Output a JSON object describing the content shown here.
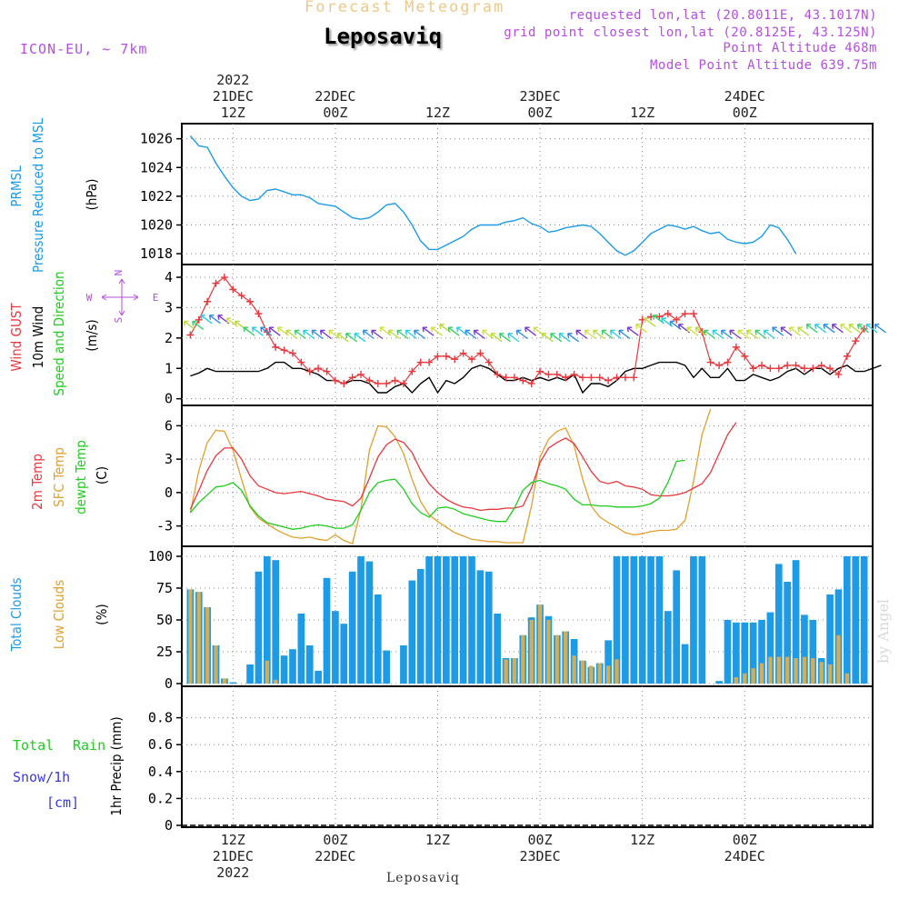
{
  "header": {
    "top_title": "Forecast Meteogram",
    "station": "Leposaviq",
    "model": "ICON-EU, ~ 7km",
    "requested": "requested lon,lat (20.8011E, 43.1017N)",
    "grid_point": "grid point closest lon,lat (20.8125E, 43.125N)",
    "point_altitude": "Point Altitude 468m",
    "model_altitude": "Model Point Altitude 639.75m"
  },
  "footer": {
    "station": "Leposaviq",
    "credit": "by Angel"
  },
  "colors": {
    "pressure": "#1e9be6",
    "gust": "#e8383d",
    "wind": "#000000",
    "temp2m": "#e8383d",
    "sfc_temp": "#e0a030",
    "dewpt": "#1fcc1f",
    "total_clouds": "#1e9be6",
    "low_clouds": "#d4ad55",
    "rain": "#1fcc1f",
    "snow": "#3b3bd6",
    "dir_labels": "#b44ee0"
  },
  "time_axis": {
    "top": [
      {
        "t": 12,
        "lines": [
          "2022",
          "21DEC",
          "12Z"
        ]
      },
      {
        "t": 24,
        "lines": [
          "22DEC",
          "00Z"
        ]
      },
      {
        "t": 36,
        "lines": [
          "12Z"
        ]
      },
      {
        "t": 48,
        "lines": [
          "23DEC",
          "00Z"
        ]
      },
      {
        "t": 60,
        "lines": [
          "12Z"
        ]
      },
      {
        "t": 72,
        "lines": [
          "24DEC",
          "00Z"
        ]
      }
    ],
    "bottom": [
      {
        "t": 12,
        "lines": [
          "12Z",
          "21DEC",
          "2022"
        ]
      },
      {
        "t": 24,
        "lines": [
          "00Z",
          "22DEC"
        ]
      },
      {
        "t": 36,
        "lines": [
          "12Z"
        ]
      },
      {
        "t": 48,
        "lines": [
          "00Z",
          "23DEC"
        ]
      },
      {
        "t": 60,
        "lines": [
          "12Z"
        ]
      },
      {
        "t": 72,
        "lines": [
          "00Z",
          "24DEC"
        ]
      }
    ]
  },
  "panels": [
    {
      "id": "pressure",
      "labels": [
        {
          "text": "PRMSL",
          "color": "#1e9be6"
        },
        {
          "text": "Pressure Reduced to MSL",
          "color": "#1e9be6"
        },
        {
          "text": "(hPa)",
          "color": "#000000"
        }
      ]
    },
    {
      "id": "wind",
      "labels": [
        {
          "text": "Wind GUST",
          "color": "#e8383d"
        },
        {
          "text": "10m Wind",
          "color": "#000000"
        },
        {
          "text": "Speed and Direction",
          "color": "#1fcc1f"
        },
        {
          "text": "(m/s)",
          "color": "#000000"
        }
      ],
      "compass": {
        "n": "N",
        "s": "S",
        "w": "W",
        "e": "E"
      }
    },
    {
      "id": "temp",
      "labels": [
        {
          "text": "2m Temp",
          "color": "#e8383d"
        },
        {
          "text": "SFC Temp",
          "color": "#e0a030"
        },
        {
          "text": "dewpt Temp",
          "color": "#1fcc1f"
        },
        {
          "text": "(C)",
          "color": "#000000"
        }
      ]
    },
    {
      "id": "clouds",
      "labels": [
        {
          "text": "Total Clouds",
          "color": "#1e9be6"
        },
        {
          "text": "Low Clouds",
          "color": "#e0a030"
        },
        {
          "text": "(%)",
          "color": "#000000"
        }
      ]
    },
    {
      "id": "precip",
      "labels": [
        {
          "text": "Total",
          "color": "#1fcc1f"
        },
        {
          "text": "Rain",
          "color": "#1fcc1f"
        },
        {
          "text": "Snow/1h",
          "color": "#3b3bd6"
        },
        {
          "text": "[cm]",
          "color": "#3b3bd6"
        },
        {
          "text": "1hr Precip (mm)",
          "color": "#000000"
        }
      ]
    }
  ],
  "chart_data": [
    {
      "type": "line",
      "title": "PRMSL Pressure Reduced to MSL",
      "ylabel": "(hPa)",
      "ylim": [
        1017.5,
        1026.8
      ],
      "yticks": [
        1018,
        1020,
        1022,
        1024,
        1026
      ],
      "x_start": 7,
      "x_step": 1,
      "series": [
        {
          "name": "PRMSL",
          "values": [
            1026.2,
            1025.5,
            1025.4,
            1024.3,
            1023.4,
            1022.6,
            1022.0,
            1021.7,
            1021.8,
            1022.4,
            1022.5,
            1022.3,
            1022.1,
            1022.1,
            1021.9,
            1021.5,
            1021.4,
            1021.3,
            1020.9,
            1020.5,
            1020.4,
            1020.5,
            1020.9,
            1021.4,
            1021.5,
            1020.9,
            1020.0,
            1018.9,
            1018.3,
            1018.3,
            1018.6,
            1018.9,
            1019.2,
            1019.7,
            1020.0,
            1020.0,
            1020.0,
            1020.2,
            1020.3,
            1020.5,
            1020.1,
            1019.9,
            1019.5,
            1019.6,
            1019.8,
            1019.9,
            1020.0,
            1019.9,
            1019.4,
            1018.8,
            1018.2,
            1017.9,
            1018.2,
            1018.8,
            1019.4,
            1019.7,
            1020.0,
            1019.9,
            1019.7,
            1019.9,
            1019.6,
            1019.4,
            1019.5,
            1019.0,
            1018.8,
            1018.7,
            1018.8,
            1019.2,
            1020.0,
            1019.8,
            1019.0,
            1018.0
          ]
        }
      ]
    },
    {
      "type": "line",
      "title": "Wind GUST / 10m Wind Speed and Direction",
      "ylabel": "(m/s)",
      "ylim": [
        -0.1,
        4.3
      ],
      "yticks": [
        0,
        1,
        2,
        3,
        4
      ],
      "x_start": 7,
      "x_step": 1,
      "series": [
        {
          "name": "Wind GUST",
          "values": [
            2.1,
            2.6,
            3.2,
            3.8,
            4.0,
            3.6,
            3.4,
            3.2,
            2.8,
            2.2,
            1.7,
            1.6,
            1.5,
            1.2,
            0.9,
            1.0,
            0.9,
            0.6,
            0.5,
            0.7,
            0.8,
            0.6,
            0.5,
            0.5,
            0.6,
            0.5,
            0.9,
            1.2,
            1.2,
            1.4,
            1.4,
            1.3,
            1.5,
            1.3,
            1.5,
            1.2,
            0.8,
            0.7,
            0.7,
            0.6,
            0.5,
            0.9,
            0.8,
            0.8,
            0.7,
            0.8,
            0.7,
            0.7,
            0.7,
            0.6,
            0.7,
            0.7,
            0.7,
            2.6,
            2.7,
            2.7,
            2.8,
            2.6,
            2.8,
            2.8,
            2.2,
            1.2,
            1.1,
            1.2,
            1.7,
            1.4,
            1.0,
            1.1,
            1.0,
            1.0,
            1.1,
            1.1,
            1.0,
            1.0,
            1.1,
            1.0,
            0.8,
            1.4,
            1.9,
            2.3
          ]
        },
        {
          "name": "10m Wind",
          "values": [
            0.75,
            0.85,
            1.0,
            0.9,
            0.9,
            0.9,
            0.9,
            0.9,
            0.9,
            1.0,
            1.2,
            1.2,
            1.0,
            1.0,
            0.9,
            0.8,
            0.6,
            0.6,
            0.5,
            0.6,
            0.6,
            0.5,
            0.2,
            0.2,
            0.4,
            0.5,
            0.2,
            0.5,
            0.7,
            0.2,
            0.6,
            0.5,
            0.7,
            1.0,
            1.1,
            1.0,
            0.8,
            0.6,
            0.6,
            0.7,
            0.6,
            0.7,
            0.6,
            0.7,
            0.6,
            0.8,
            0.2,
            0.5,
            0.5,
            0.4,
            0.6,
            0.9,
            1.0,
            1.0,
            1.1,
            1.2,
            1.2,
            1.2,
            1.1,
            0.7,
            1.0,
            0.7,
            0.7,
            1.0,
            0.6,
            0.6,
            0.8,
            0.7,
            0.6,
            0.7,
            0.9,
            1.0,
            0.8,
            1.0,
            1.0,
            0.8,
            1.0,
            1.1,
            0.9,
            0.9,
            1.0,
            1.1
          ]
        },
        {
          "name": "Speed and Direction",
          "values": [
            2.4,
            2.4,
            2.6,
            2.6,
            2.6,
            2.5,
            2.4,
            2.2,
            2.2,
            2.2,
            2.2,
            2.2,
            2.1,
            2.1,
            2.1,
            2.1,
            2.1,
            2.1,
            2.0,
            2.0,
            2.0,
            2.1,
            2.1,
            2.2,
            2.1,
            2.1,
            2.1,
            2.1,
            2.2,
            2.2,
            2.3,
            2.2,
            2.2,
            2.1,
            2.1,
            2.1,
            2.0,
            2.0,
            2.0,
            2.1,
            2.2,
            2.2,
            2.0,
            2.0,
            2.0,
            2.0,
            2.1,
            2.1,
            2.1,
            2.1,
            2.1,
            2.1,
            2.2,
            2.3,
            2.5,
            2.6,
            2.5,
            2.4,
            2.3,
            2.2,
            2.2,
            2.1,
            2.1,
            2.1,
            2.1,
            2.1,
            2.1,
            2.1,
            2.1,
            2.2,
            2.2,
            2.2,
            2.2,
            2.3,
            2.3,
            2.3,
            2.3,
            2.3,
            2.3,
            2.3,
            2.3,
            2.3
          ]
        }
      ]
    },
    {
      "type": "line",
      "title": "2m Temp / SFC Temp / dewpt Temp",
      "ylabel": "(C)",
      "ylim": [
        -4.5,
        7.5
      ],
      "yticks": [
        -3,
        0,
        3,
        6
      ],
      "x_start": 7,
      "x_step": 1,
      "series": [
        {
          "name": "2m Temp",
          "values": [
            -1.5,
            0.2,
            2.0,
            3.3,
            4.0,
            4.0,
            3.0,
            1.5,
            0.6,
            0.3,
            0.0,
            -0.1,
            0.0,
            0.1,
            -0.1,
            -0.3,
            -0.6,
            -0.7,
            -0.8,
            -1.2,
            -0.5,
            1.3,
            3.2,
            4.3,
            4.8,
            4.5,
            3.6,
            2.0,
            0.8,
            0.0,
            -0.6,
            -1.0,
            -1.3,
            -1.4,
            -1.6,
            -1.5,
            -1.5,
            -1.4,
            -1.4,
            -1.2,
            0.4,
            2.7,
            4.0,
            4.5,
            4.9,
            4.4,
            3.2,
            1.9,
            1.0,
            0.8,
            1.0,
            0.6,
            0.5,
            0.3,
            -0.2,
            -0.3,
            -0.3,
            -0.2,
            0.0,
            0.4,
            0.8,
            1.8,
            3.5,
            5.2,
            6.3
          ]
        },
        {
          "name": "SFC Temp",
          "values": [
            -1.8,
            2.0,
            4.5,
            5.6,
            5.5,
            3.8,
            1.2,
            -1.3,
            -2.3,
            -2.8,
            -3.3,
            -3.7,
            -4.0,
            -4.1,
            -4.0,
            -4.2,
            -4.3,
            -3.8,
            -4.3,
            -4.6,
            -1.5,
            3.8,
            6.0,
            5.9,
            5.0,
            3.5,
            1.2,
            -0.8,
            -2.0,
            -2.6,
            -3.1,
            -3.6,
            -3.9,
            -4.2,
            -4.3,
            -4.4,
            -4.4,
            -4.5,
            -4.5,
            -4.5,
            -1.2,
            3.2,
            4.8,
            5.5,
            5.8,
            4.2,
            1.2,
            -1.2,
            -2.2,
            -2.7,
            -3.1,
            -3.6,
            -3.8,
            -3.7,
            -3.5,
            -3.4,
            -3.4,
            -3.3,
            -2.5,
            1.0,
            5.2,
            7.5
          ]
        },
        {
          "name": "dewpt Temp",
          "values": [
            -1.8,
            -0.9,
            -0.2,
            0.5,
            0.6,
            0.9,
            0.2,
            -1.2,
            -2.1,
            -2.7,
            -2.9,
            -3.1,
            -3.3,
            -3.2,
            -3.0,
            -2.9,
            -3.0,
            -3.2,
            -3.2,
            -2.9,
            -1.6,
            0.0,
            0.9,
            1.1,
            1.2,
            0.3,
            -1.0,
            -1.8,
            -2.2,
            -1.4,
            -1.3,
            -1.5,
            -1.9,
            -2.1,
            -2.3,
            -2.5,
            -2.6,
            -2.6,
            -1.4,
            0.2,
            0.9,
            1.1,
            0.8,
            0.6,
            0.3,
            -0.6,
            -1.1,
            -1.1,
            -1.2,
            -1.2,
            -1.3,
            -1.3,
            -1.3,
            -1.2,
            -1.0,
            -0.5,
            0.9,
            2.8,
            2.9
          ]
        }
      ]
    },
    {
      "type": "bar",
      "title": "Total Clouds / Low Clouds",
      "ylabel": "(%)",
      "ylim": [
        0,
        105
      ],
      "yticks": [
        0,
        25,
        50,
        75,
        100
      ],
      "x_start": 7,
      "x_step": 1,
      "series": [
        {
          "name": "Total Clouds",
          "values": [
            74,
            72,
            60,
            30,
            4,
            1,
            0,
            15,
            88,
            100,
            97,
            22,
            27,
            55,
            30,
            10,
            83,
            57,
            47,
            88,
            100,
            96,
            70,
            26,
            0,
            30,
            81,
            90,
            100,
            100,
            100,
            100,
            100,
            100,
            89,
            88,
            55,
            20,
            20,
            38,
            52,
            62,
            53,
            38,
            41,
            35,
            18,
            13,
            16,
            34,
            100,
            100,
            100,
            100,
            100,
            100,
            57,
            89,
            31,
            100,
            100,
            0,
            2,
            50,
            48,
            48,
            48,
            50,
            56,
            94,
            80,
            97,
            54,
            50,
            20,
            70,
            74,
            100,
            100,
            100
          ]
        },
        {
          "name": "Low Clouds",
          "values": [
            74,
            72,
            60,
            30,
            4,
            0,
            0,
            0,
            0,
            18,
            3,
            0,
            0,
            0,
            0,
            0,
            0,
            0,
            0,
            0,
            0,
            0,
            0,
            0,
            0,
            0,
            0,
            0,
            0,
            0,
            0,
            0,
            0,
            0,
            0,
            0,
            0,
            19,
            20,
            38,
            50,
            62,
            50,
            38,
            41,
            22,
            18,
            14,
            16,
            14,
            19,
            0,
            0,
            0,
            0,
            0,
            0,
            0,
            0,
            0,
            0,
            0,
            0,
            0,
            5,
            8,
            12,
            16,
            21,
            21,
            21,
            20,
            21,
            20,
            17,
            15,
            38,
            8,
            0,
            0
          ]
        }
      ]
    },
    {
      "type": "bar",
      "title": "1hr Precip",
      "ylabel": "1hr Precip (mm)",
      "ylim": [
        0,
        1.0
      ],
      "yticks": [
        0,
        0.2,
        0.4,
        0.6,
        0.8
      ],
      "x_start": 7,
      "x_step": 1,
      "series": [
        {
          "name": "Total Rain",
          "values": [
            0,
            0,
            0,
            0,
            0,
            0,
            0,
            0,
            0,
            0,
            0,
            0,
            0,
            0,
            0,
            0,
            0,
            0,
            0,
            0,
            0,
            0,
            0,
            0,
            0,
            0,
            0,
            0,
            0,
            0,
            0,
            0,
            0,
            0,
            0,
            0,
            0,
            0,
            0,
            0,
            0,
            0,
            0,
            0,
            0,
            0,
            0,
            0,
            0,
            0,
            0,
            0,
            0,
            0,
            0,
            0,
            0,
            0,
            0,
            0,
            0,
            0,
            0,
            0,
            0,
            0,
            0,
            0,
            0,
            0,
            0,
            0,
            0,
            0,
            0,
            0,
            0,
            0,
            0,
            0
          ]
        }
      ]
    }
  ]
}
